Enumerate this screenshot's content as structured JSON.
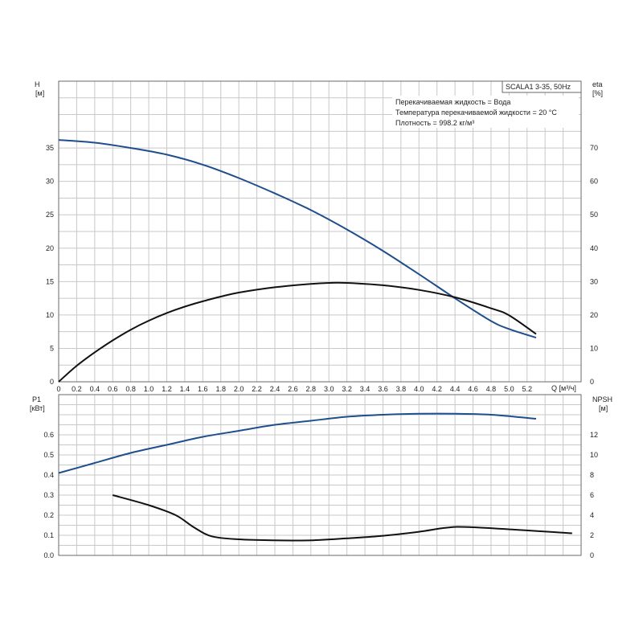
{
  "chart_data": [
    {
      "type": "line",
      "panel": "top",
      "model_label": "SCALA1 3-35, 50Hz",
      "notes": [
        "Перекачиваемая жидкость = Вода",
        "Температура перекачиваемой жидкости = 20 °C",
        "Плотность = 998.2 кг/м³"
      ],
      "xlabel": "Q [м³/ч]",
      "xlim": [
        0,
        5.8
      ],
      "xticks": [
        "0",
        "0.2",
        "0.4",
        "0.6",
        "0.8",
        "1.0",
        "1.2",
        "1.4",
        "1.6",
        "1.8",
        "2.0",
        "2.2",
        "2.4",
        "2.6",
        "2.8",
        "3.0",
        "3.2",
        "3.4",
        "3.6",
        "3.8",
        "4.0",
        "4.2",
        "4.4",
        "4.6",
        "4.8",
        "5.0",
        "5.2"
      ],
      "left_axis": {
        "label_top": "H",
        "label_unit": "[м]",
        "ylim": [
          0,
          45
        ],
        "ticks": [
          "0",
          "5",
          "10",
          "15",
          "20",
          "25",
          "30",
          "35"
        ]
      },
      "right_axis": {
        "label_top": "eta",
        "label_unit": "[%]",
        "ylim": [
          0,
          90
        ],
        "ticks": [
          "0",
          "10",
          "20",
          "30",
          "40",
          "50",
          "60",
          "70"
        ]
      },
      "series": [
        {
          "axis": "left",
          "color": "#1f4e8c",
          "x": [
            0,
            0.4,
            0.8,
            1.2,
            1.6,
            2.0,
            2.4,
            2.8,
            3.2,
            3.6,
            4.0,
            4.4,
            4.8,
            5.0,
            5.3
          ],
          "values": [
            36.2,
            35.8,
            35.0,
            34.0,
            32.5,
            30.5,
            28.2,
            25.7,
            22.8,
            19.6,
            16.1,
            12.5,
            9.1,
            7.9,
            6.6
          ]
        },
        {
          "axis": "right",
          "color": "#111111",
          "x": [
            0,
            0.2,
            0.4,
            0.6,
            0.8,
            1.0,
            1.2,
            1.4,
            1.6,
            1.8,
            2.0,
            2.4,
            2.8,
            3.0,
            3.2,
            3.6,
            4.0,
            4.4,
            4.8,
            5.0,
            5.3
          ],
          "values": [
            0,
            4.8,
            8.8,
            12.4,
            15.6,
            18.3,
            20.6,
            22.5,
            24.1,
            25.5,
            26.7,
            28.3,
            29.3,
            29.6,
            29.6,
            28.9,
            27.5,
            25.3,
            22.0,
            19.9,
            14.3
          ]
        }
      ],
      "grid": true
    },
    {
      "type": "line",
      "panel": "bottom",
      "xlim": [
        0,
        5.8
      ],
      "left_axis": {
        "label_top": "P1",
        "label_unit": "[кВт]",
        "ylim": [
          0,
          0.8
        ],
        "ticks": [
          "0.0",
          "0.1",
          "0.2",
          "0.3",
          "0.4",
          "0.5",
          "0.6"
        ]
      },
      "right_axis": {
        "label_top": "NPSH",
        "label_unit": "[м]",
        "ylim": [
          0,
          16
        ],
        "ticks": [
          "0",
          "2",
          "4",
          "6",
          "8",
          "10",
          "12"
        ]
      },
      "series": [
        {
          "axis": "left",
          "color": "#1f4e8c",
          "x": [
            0,
            0.4,
            0.8,
            1.2,
            1.6,
            2.0,
            2.4,
            2.8,
            3.2,
            3.6,
            4.0,
            4.4,
            4.8,
            5.3
          ],
          "values": [
            0.41,
            0.46,
            0.51,
            0.55,
            0.59,
            0.62,
            0.65,
            0.67,
            0.69,
            0.7,
            0.705,
            0.705,
            0.7,
            0.68
          ]
        },
        {
          "axis": "right",
          "color": "#111111",
          "x": [
            0.6,
            1.0,
            1.3,
            1.5,
            1.7,
            2.0,
            2.4,
            2.8,
            3.2,
            3.6,
            4.0,
            4.3,
            4.6,
            5.7
          ],
          "values": [
            6.0,
            5.0,
            4.0,
            2.8,
            1.9,
            1.6,
            1.5,
            1.5,
            1.7,
            1.95,
            2.35,
            2.75,
            2.8,
            2.2
          ]
        }
      ],
      "grid": true
    }
  ]
}
